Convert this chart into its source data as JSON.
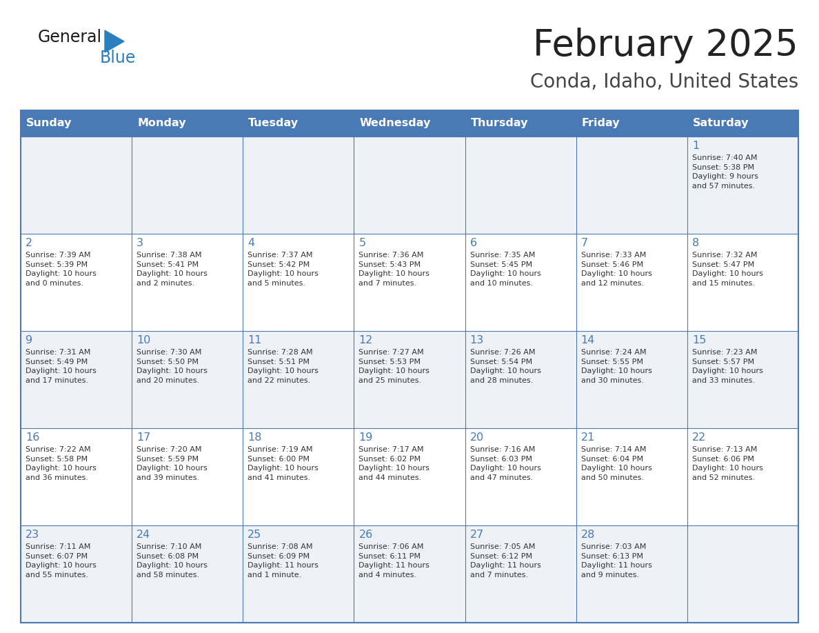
{
  "title": "February 2025",
  "subtitle": "Conda, Idaho, United States",
  "header_bg": "#4a7ab5",
  "header_text_color": "#ffffff",
  "header_days": [
    "Sunday",
    "Monday",
    "Tuesday",
    "Wednesday",
    "Thursday",
    "Friday",
    "Saturday"
  ],
  "row_bg_light": "#eef2f7",
  "row_bg_white": "#ffffff",
  "border_color": "#4a7ab5",
  "day_number_color": "#4a7ab5",
  "cell_text_color": "#333333",
  "title_color": "#222222",
  "subtitle_color": "#444444",
  "logo_color1": "#1a1a1a",
  "logo_color2": "#2a7fc0",
  "calendar_data": [
    [
      {
        "day": "",
        "info": ""
      },
      {
        "day": "",
        "info": ""
      },
      {
        "day": "",
        "info": ""
      },
      {
        "day": "",
        "info": ""
      },
      {
        "day": "",
        "info": ""
      },
      {
        "day": "",
        "info": ""
      },
      {
        "day": "1",
        "info": "Sunrise: 7:40 AM\nSunset: 5:38 PM\nDaylight: 9 hours\nand 57 minutes."
      }
    ],
    [
      {
        "day": "2",
        "info": "Sunrise: 7:39 AM\nSunset: 5:39 PM\nDaylight: 10 hours\nand 0 minutes."
      },
      {
        "day": "3",
        "info": "Sunrise: 7:38 AM\nSunset: 5:41 PM\nDaylight: 10 hours\nand 2 minutes."
      },
      {
        "day": "4",
        "info": "Sunrise: 7:37 AM\nSunset: 5:42 PM\nDaylight: 10 hours\nand 5 minutes."
      },
      {
        "day": "5",
        "info": "Sunrise: 7:36 AM\nSunset: 5:43 PM\nDaylight: 10 hours\nand 7 minutes."
      },
      {
        "day": "6",
        "info": "Sunrise: 7:35 AM\nSunset: 5:45 PM\nDaylight: 10 hours\nand 10 minutes."
      },
      {
        "day": "7",
        "info": "Sunrise: 7:33 AM\nSunset: 5:46 PM\nDaylight: 10 hours\nand 12 minutes."
      },
      {
        "day": "8",
        "info": "Sunrise: 7:32 AM\nSunset: 5:47 PM\nDaylight: 10 hours\nand 15 minutes."
      }
    ],
    [
      {
        "day": "9",
        "info": "Sunrise: 7:31 AM\nSunset: 5:49 PM\nDaylight: 10 hours\nand 17 minutes."
      },
      {
        "day": "10",
        "info": "Sunrise: 7:30 AM\nSunset: 5:50 PM\nDaylight: 10 hours\nand 20 minutes."
      },
      {
        "day": "11",
        "info": "Sunrise: 7:28 AM\nSunset: 5:51 PM\nDaylight: 10 hours\nand 22 minutes."
      },
      {
        "day": "12",
        "info": "Sunrise: 7:27 AM\nSunset: 5:53 PM\nDaylight: 10 hours\nand 25 minutes."
      },
      {
        "day": "13",
        "info": "Sunrise: 7:26 AM\nSunset: 5:54 PM\nDaylight: 10 hours\nand 28 minutes."
      },
      {
        "day": "14",
        "info": "Sunrise: 7:24 AM\nSunset: 5:55 PM\nDaylight: 10 hours\nand 30 minutes."
      },
      {
        "day": "15",
        "info": "Sunrise: 7:23 AM\nSunset: 5:57 PM\nDaylight: 10 hours\nand 33 minutes."
      }
    ],
    [
      {
        "day": "16",
        "info": "Sunrise: 7:22 AM\nSunset: 5:58 PM\nDaylight: 10 hours\nand 36 minutes."
      },
      {
        "day": "17",
        "info": "Sunrise: 7:20 AM\nSunset: 5:59 PM\nDaylight: 10 hours\nand 39 minutes."
      },
      {
        "day": "18",
        "info": "Sunrise: 7:19 AM\nSunset: 6:00 PM\nDaylight: 10 hours\nand 41 minutes."
      },
      {
        "day": "19",
        "info": "Sunrise: 7:17 AM\nSunset: 6:02 PM\nDaylight: 10 hours\nand 44 minutes."
      },
      {
        "day": "20",
        "info": "Sunrise: 7:16 AM\nSunset: 6:03 PM\nDaylight: 10 hours\nand 47 minutes."
      },
      {
        "day": "21",
        "info": "Sunrise: 7:14 AM\nSunset: 6:04 PM\nDaylight: 10 hours\nand 50 minutes."
      },
      {
        "day": "22",
        "info": "Sunrise: 7:13 AM\nSunset: 6:06 PM\nDaylight: 10 hours\nand 52 minutes."
      }
    ],
    [
      {
        "day": "23",
        "info": "Sunrise: 7:11 AM\nSunset: 6:07 PM\nDaylight: 10 hours\nand 55 minutes."
      },
      {
        "day": "24",
        "info": "Sunrise: 7:10 AM\nSunset: 6:08 PM\nDaylight: 10 hours\nand 58 minutes."
      },
      {
        "day": "25",
        "info": "Sunrise: 7:08 AM\nSunset: 6:09 PM\nDaylight: 11 hours\nand 1 minute."
      },
      {
        "day": "26",
        "info": "Sunrise: 7:06 AM\nSunset: 6:11 PM\nDaylight: 11 hours\nand 4 minutes."
      },
      {
        "day": "27",
        "info": "Sunrise: 7:05 AM\nSunset: 6:12 PM\nDaylight: 11 hours\nand 7 minutes."
      },
      {
        "day": "28",
        "info": "Sunrise: 7:03 AM\nSunset: 6:13 PM\nDaylight: 11 hours\nand 9 minutes."
      },
      {
        "day": "",
        "info": ""
      }
    ]
  ]
}
